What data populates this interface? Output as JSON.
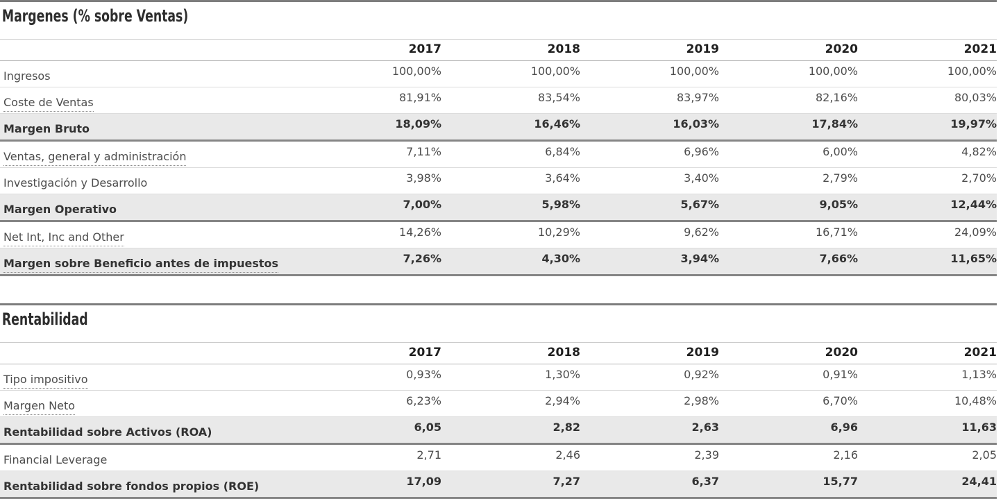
{
  "colors": {
    "section_divider": "#7d7d7d",
    "summary_row_bg": "#e9e9e9",
    "summary_row_border": "#858585",
    "row_border": "#dcdcdc",
    "header_border": "#b3b3b3",
    "title_color": "#2d2d2d",
    "text_color": "#4d4d4d"
  },
  "tables": [
    {
      "title": "Margenes (% sobre Ventas)",
      "years": [
        "2017",
        "2018",
        "2019",
        "2020",
        "2021"
      ],
      "rows": [
        {
          "label": "Ingresos",
          "values": [
            "100,00%",
            "100,00%",
            "100,00%",
            "100,00%",
            "100,00%"
          ],
          "summary": false,
          "dotted": false
        },
        {
          "label": "Coste de Ventas",
          "values": [
            "81,91%",
            "83,54%",
            "83,97%",
            "82,16%",
            "80,03%"
          ],
          "summary": false,
          "dotted": true
        },
        {
          "label": "Margen Bruto",
          "values": [
            "18,09%",
            "16,46%",
            "16,03%",
            "17,84%",
            "19,97%"
          ],
          "summary": true,
          "dotted": false
        },
        {
          "label": "Ventas, general y administración",
          "values": [
            "7,11%",
            "6,84%",
            "6,96%",
            "6,00%",
            "4,82%"
          ],
          "summary": false,
          "dotted": true
        },
        {
          "label": "Investigación y Desarrollo",
          "values": [
            "3,98%",
            "3,64%",
            "3,40%",
            "2,79%",
            "2,70%"
          ],
          "summary": false,
          "dotted": false
        },
        {
          "label": "Margen Operativo",
          "values": [
            "7,00%",
            "5,98%",
            "5,67%",
            "9,05%",
            "12,44%"
          ],
          "summary": true,
          "dotted": false
        },
        {
          "label": "Net Int, Inc and Other",
          "values": [
            "14,26%",
            "10,29%",
            "9,62%",
            "16,71%",
            "24,09%"
          ],
          "summary": false,
          "dotted": true
        },
        {
          "label": "Margen sobre Beneficio antes de impuestos",
          "values": [
            "7,26%",
            "4,30%",
            "3,94%",
            "7,66%",
            "11,65%"
          ],
          "summary": true,
          "dotted": true
        }
      ]
    },
    {
      "title": "Rentabilidad",
      "years": [
        "2017",
        "2018",
        "2019",
        "2020",
        "2021"
      ],
      "rows": [
        {
          "label": "Tipo impositivo",
          "values": [
            "0,93%",
            "1,30%",
            "0,92%",
            "0,91%",
            "1,13%"
          ],
          "summary": false,
          "dotted": true
        },
        {
          "label": "Margen Neto",
          "values": [
            "6,23%",
            "2,94%",
            "2,98%",
            "6,70%",
            "10,48%"
          ],
          "summary": false,
          "dotted": true
        },
        {
          "label": "Rentabilidad sobre Activos (ROA)",
          "values": [
            "6,05",
            "2,82",
            "2,63",
            "6,96",
            "11,63"
          ],
          "summary": true,
          "dotted": false
        },
        {
          "label": "Financial Leverage",
          "values": [
            "2,71",
            "2,46",
            "2,39",
            "2,16",
            "2,05"
          ],
          "summary": false,
          "dotted": false
        },
        {
          "label": "Rentabilidad sobre fondos propios (ROE)",
          "values": [
            "17,09",
            "7,27",
            "6,37",
            "15,77",
            "24,41"
          ],
          "summary": true,
          "dotted": false
        }
      ]
    }
  ]
}
